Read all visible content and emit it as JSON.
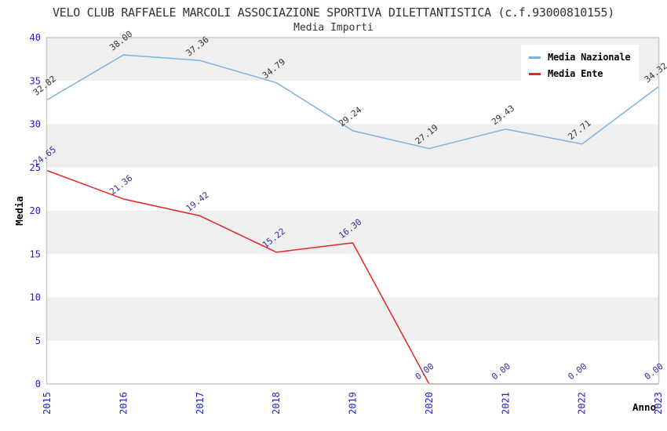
{
  "chart_data": {
    "type": "line",
    "title": "VELO CLUB RAFFAELE MARCOLI ASSOCIAZIONE SPORTIVA DILETTANTISTICA (c.f.93000810155)",
    "subtitle": "Media Importi",
    "xlabel": "Anno",
    "ylabel": "Media",
    "x": [
      "2015",
      "2016",
      "2017",
      "2018",
      "2019",
      "2020",
      "2021",
      "2022",
      "2023"
    ],
    "series": [
      {
        "name": "Media Nazionale",
        "color": "#7cb0e4",
        "label_color": "#333333",
        "values": [
          32.82,
          38.0,
          37.36,
          34.79,
          29.24,
          27.19,
          29.43,
          27.71,
          34.32
        ]
      },
      {
        "name": "Media Ente",
        "color": "#e42525",
        "label_color": "#333399",
        "values": [
          24.65,
          21.36,
          19.42,
          15.22,
          16.3,
          0.0,
          0.0,
          0.0,
          0.0
        ]
      }
    ],
    "ylim": [
      0,
      40
    ],
    "y_ticks": [
      0,
      5,
      10,
      15,
      20,
      25,
      30,
      35,
      40
    ],
    "value_label_decimals": 2,
    "grid": "horizontal-bands",
    "legend_position": "top-right",
    "band_color": "#efefef",
    "plot_background": "#ffffff",
    "border_color": "#cccccc",
    "tick_label_color": "#2222cc",
    "axis_title_color": "#000000",
    "title_color": "#333333"
  }
}
